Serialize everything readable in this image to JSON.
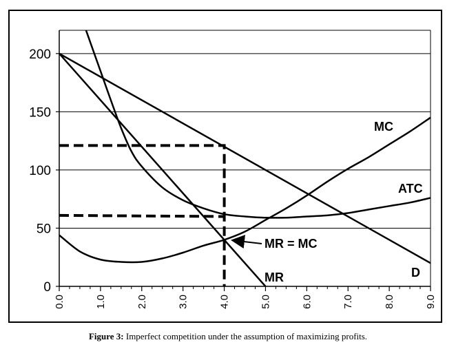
{
  "chart_data": {
    "type": "line",
    "title": "",
    "xlabel": "",
    "ylabel": "",
    "xlim": [
      0,
      9
    ],
    "ylim": [
      0,
      220
    ],
    "grid": true,
    "x_ticks": [
      "0.0",
      "1.0",
      "2.0",
      "3.0",
      "4.0",
      "5.0",
      "6.0",
      "7.0",
      "8.0",
      "9.0"
    ],
    "y_ticks": [
      "0",
      "50",
      "100",
      "150",
      "200"
    ],
    "series": [
      {
        "name": "D",
        "label": "D",
        "points": [
          [
            0,
            200
          ],
          [
            9,
            20
          ]
        ]
      },
      {
        "name": "MR",
        "label": "MR",
        "points": [
          [
            0,
            200
          ],
          [
            5,
            0
          ]
        ]
      },
      {
        "name": "MC",
        "label": "MC",
        "points": [
          [
            0,
            44
          ],
          [
            0.5,
            30
          ],
          [
            1,
            23
          ],
          [
            1.5,
            21
          ],
          [
            2,
            21
          ],
          [
            2.5,
            24
          ],
          [
            3,
            29
          ],
          [
            3.5,
            35
          ],
          [
            4,
            40
          ],
          [
            4.5,
            47
          ],
          [
            5,
            57
          ],
          [
            5.5,
            67
          ],
          [
            6,
            78
          ],
          [
            6.5,
            90
          ],
          [
            7,
            101
          ],
          [
            7.5,
            111
          ],
          [
            8,
            122
          ],
          [
            8.5,
            133
          ],
          [
            9,
            145
          ]
        ]
      },
      {
        "name": "ATC",
        "label": "ATC",
        "points": [
          [
            0.65,
            220
          ],
          [
            0.8,
            205
          ],
          [
            1.0,
            185
          ],
          [
            1.25,
            160
          ],
          [
            1.5,
            136
          ],
          [
            1.75,
            116
          ],
          [
            2.0,
            103
          ],
          [
            2.5,
            85
          ],
          [
            3.0,
            74
          ],
          [
            3.5,
            67
          ],
          [
            4.0,
            62
          ],
          [
            4.5,
            60
          ],
          [
            5.0,
            59
          ],
          [
            5.5,
            59
          ],
          [
            6.0,
            60
          ],
          [
            6.5,
            61
          ],
          [
            7.0,
            63
          ],
          [
            7.5,
            66
          ],
          [
            8.0,
            69
          ],
          [
            8.5,
            72
          ],
          [
            9.0,
            76
          ]
        ]
      }
    ],
    "reference_lines": [
      {
        "name": "price-line",
        "points": [
          [
            0,
            121
          ],
          [
            4.0,
            121
          ],
          [
            4.0,
            0
          ]
        ]
      },
      {
        "name": "cost-line",
        "points": [
          [
            0,
            61
          ],
          [
            4.0,
            60
          ]
        ]
      }
    ],
    "annotations": [
      {
        "text": "MR = MC",
        "arrow_to": [
          4.1,
          40
        ]
      }
    ]
  },
  "caption": {
    "label": "Figure 3:",
    "text": "Imperfect competition under the assumption of maximizing profits."
  },
  "colors": {
    "lines": "#000000",
    "grid": "#000000",
    "background": "#ffffff"
  }
}
